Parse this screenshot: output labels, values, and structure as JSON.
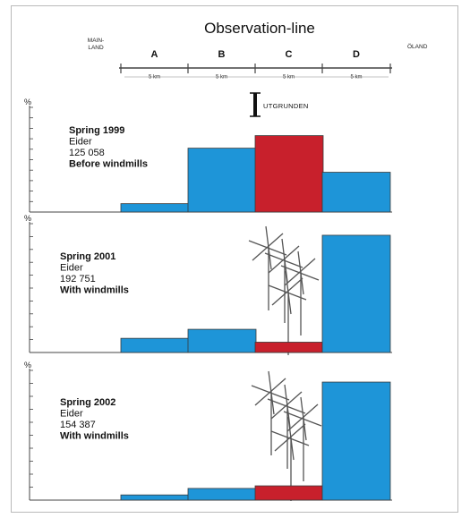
{
  "colors": {
    "blue": "#1E95D8",
    "red": "#C8202C",
    "axis": "#444444",
    "mill": "#555555"
  },
  "chart_data": {
    "type": "bar",
    "title": "Observation-line",
    "ylabel": "%",
    "observation_line": {
      "start_label": [
        "MAIN-",
        "LAND"
      ],
      "end_label": "ÖLAND",
      "segments": [
        {
          "label": "A",
          "distance": "5 km"
        },
        {
          "label": "B",
          "distance": "5 km"
        },
        {
          "label": "C",
          "distance": "5 km"
        },
        {
          "label": "D",
          "distance": "5 km"
        }
      ],
      "marker_label": "UTGRUNDEN"
    },
    "categories": [
      "A",
      "B",
      "C",
      "D"
    ],
    "panels": [
      {
        "season": "Spring 1999",
        "species": "Eider",
        "count": "125 058",
        "condition": "Before windmills",
        "values": [
          8,
          61,
          73,
          38
        ],
        "windmills": false
      },
      {
        "season": "Spring 2001",
        "species": "Eider",
        "count": "192 751",
        "condition": "With windmills",
        "values": [
          11,
          18,
          8,
          91
        ],
        "windmills": true
      },
      {
        "season": "Spring 2002",
        "species": "Eider",
        "count": "154 387",
        "condition": "With windmills",
        "values": [
          4,
          9,
          11,
          91
        ],
        "windmills": true
      }
    ],
    "bar_colors": [
      "blue",
      "blue",
      "red",
      "blue"
    ],
    "ylim": [
      0,
      100
    ],
    "grid": false
  }
}
